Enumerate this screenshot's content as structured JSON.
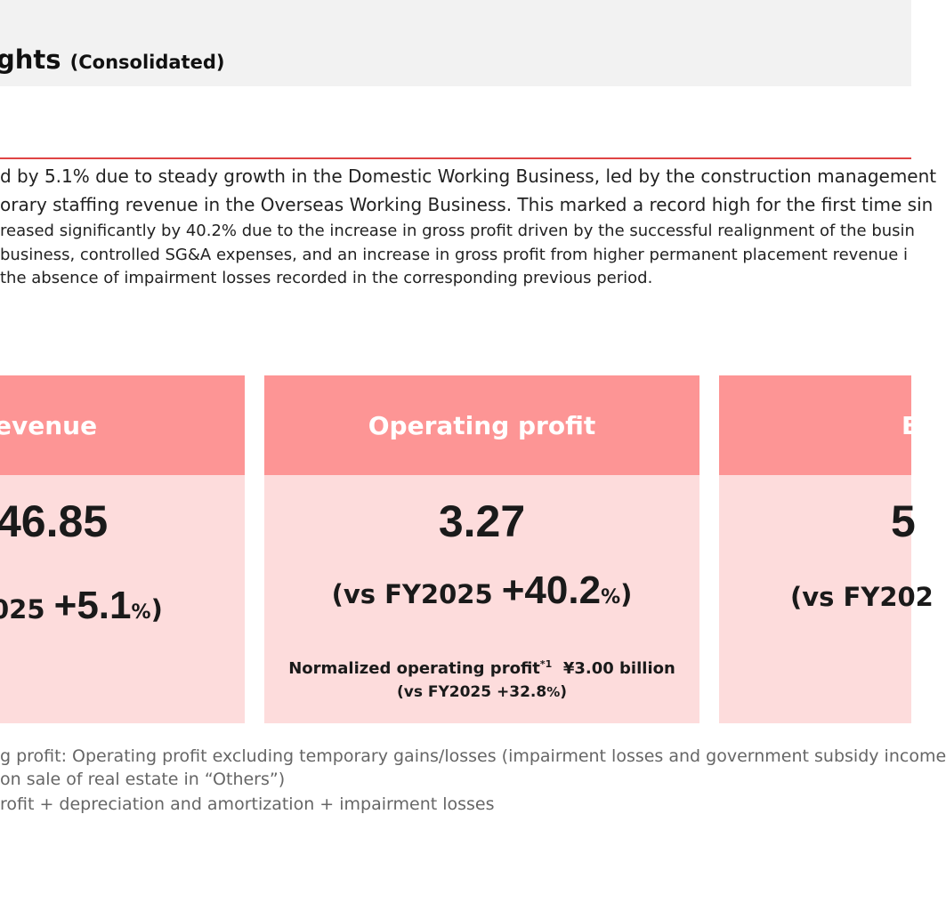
{
  "header": {
    "title": "ghts",
    "subtitle": "(Consolidated)"
  },
  "summary": {
    "lines": [
      "d by 5.1% due to steady growth in the Domestic Working Business, led by the construction management",
      "orary staffing revenue in the Overseas Working Business. This marked a record high for the first time sin",
      "reased significantly by 40.2% due to the increase in gross profit driven by the successful realignment of the busin",
      "business, controlled SG&A expenses, and an increase in gross profit from higher permanent placement revenue i",
      "the absence of impairment losses recorded in the corresponding previous period."
    ]
  },
  "cards": {
    "revenue": {
      "title": "evenue",
      "value": "46.85",
      "compare_prefix": "025 ",
      "compare_number": "+5.1",
      "compare_pct": "%",
      "compare_suffix": ")"
    },
    "operating_profit": {
      "title": "Operating profit",
      "value": "3.27",
      "compare_prefix": "(vs FY2025 ",
      "compare_number": "+40.2",
      "compare_pct": "%",
      "compare_suffix": ")",
      "normalized_label": "Normalized operating profit",
      "normalized_note": "*1",
      "normalized_value": "¥3.00 billion",
      "normalized_compare_prefix": "(vs FY2025 +32.8",
      "normalized_compare_pct": "%",
      "normalized_compare_suffix": ")"
    },
    "ebitda": {
      "title": "EB",
      "value": "5",
      "compare_prefix": "(vs FY202"
    }
  },
  "notes": {
    "lines": [
      "g profit:  Operating profit excluding temporary gains/losses (impairment losses and government subsidy income",
      "on sale of real estate in “Others”)",
      "rofit + depreciation and amortization + impairment losses"
    ]
  },
  "colors": {
    "card_header": "#fd9595",
    "card_body": "#fddcdc",
    "rule": "#e04444",
    "title_bar": "#f2f2f2"
  }
}
